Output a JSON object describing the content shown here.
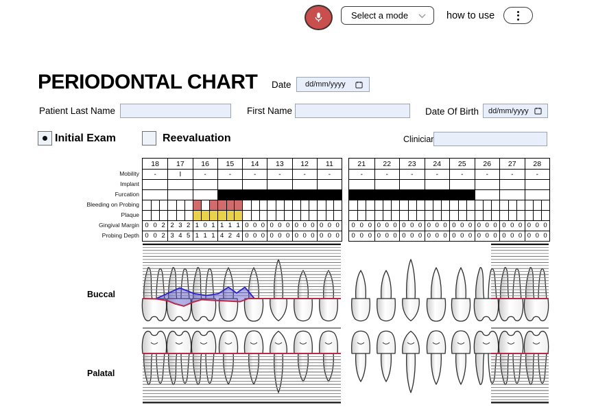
{
  "topbar": {
    "mode_select_value": "Select a mode",
    "help_text": "how to use"
  },
  "header": {
    "title": "PERIODONTAL CHART",
    "date_label": "Date",
    "date_value": "dd/mm/yyyy"
  },
  "patient": {
    "last_name_label": "Patient Last Name",
    "last_name_value": "",
    "first_name_label": "First Name",
    "first_name_value": "",
    "dob_label": "Date Of Birth",
    "dob_value": "dd/mm/yyyy"
  },
  "exam": {
    "initial_label": "Initial Exam",
    "initial_selected": true,
    "reevaluation_label": "Reevaluation",
    "reevaluation_selected": false,
    "clinician_label": "Clinician",
    "clinician_value": ""
  },
  "chart": {
    "row_labels": [
      "Mobility",
      "Implant",
      "Furcation",
      "Bleeding on Probing",
      "Plaque",
      "Gingival Margin",
      "Probing Depth"
    ],
    "left": {
      "teeth": [
        "18",
        "17",
        "16",
        "15",
        "14",
        "13",
        "12",
        "11"
      ],
      "mobility": [
        "-",
        "I",
        "-",
        "-",
        "-",
        "-",
        "-",
        "-"
      ],
      "implant": [
        "",
        "",
        "",
        "",
        "",
        "",
        "",
        ""
      ],
      "furcation": [
        0,
        0,
        0,
        1,
        1,
        1,
        1,
        1
      ],
      "bleeding": [
        [
          0,
          0,
          0
        ],
        [
          0,
          0,
          0
        ],
        [
          1,
          0,
          1
        ],
        [
          1,
          1,
          1
        ],
        [
          0,
          0,
          0
        ],
        [
          0,
          0,
          0
        ],
        [
          0,
          0,
          0
        ],
        [
          0,
          0,
          0
        ]
      ],
      "plaque": [
        [
          0,
          0,
          0
        ],
        [
          0,
          0,
          0
        ],
        [
          1,
          1,
          1
        ],
        [
          1,
          1,
          1
        ],
        [
          0,
          0,
          0
        ],
        [
          0,
          0,
          0
        ],
        [
          0,
          0,
          0
        ],
        [
          0,
          0,
          0
        ]
      ],
      "gingival_margin": [
        [
          "0",
          "0",
          "2"
        ],
        [
          "2",
          "3",
          "2"
        ],
        [
          "1",
          "0",
          "1"
        ],
        [
          "1",
          "1",
          "1"
        ],
        [
          "0",
          "0",
          "0"
        ],
        [
          "0",
          "0",
          "0"
        ],
        [
          "0",
          "0",
          "0"
        ],
        [
          "0",
          "0",
          "0"
        ]
      ],
      "probing_depth": [
        [
          "0",
          "0",
          "2"
        ],
        [
          "3",
          "4",
          "5"
        ],
        [
          "1",
          "1",
          "1"
        ],
        [
          "4",
          "2",
          "4"
        ],
        [
          "0",
          "0",
          "0"
        ],
        [
          "0",
          "0",
          "0"
        ],
        [
          "0",
          "0",
          "0"
        ],
        [
          "0",
          "0",
          "0"
        ]
      ]
    },
    "right": {
      "teeth": [
        "21",
        "22",
        "23",
        "24",
        "25",
        "26",
        "27",
        "28"
      ],
      "mobility": [
        "-",
        "-",
        "-",
        "-",
        "-",
        "-",
        "-",
        "-"
      ],
      "implant": [
        "",
        "",
        "",
        "",
        "",
        "",
        "",
        ""
      ],
      "furcation": [
        1,
        1,
        1,
        1,
        1,
        0,
        0,
        0
      ],
      "bleeding": [
        [
          0,
          0,
          0
        ],
        [
          0,
          0,
          0
        ],
        [
          0,
          0,
          0
        ],
        [
          0,
          0,
          0
        ],
        [
          0,
          0,
          0
        ],
        [
          0,
          0,
          0
        ],
        [
          0,
          0,
          0
        ],
        [
          0,
          0,
          0
        ]
      ],
      "plaque": [
        [
          0,
          0,
          0
        ],
        [
          0,
          0,
          0
        ],
        [
          0,
          0,
          0
        ],
        [
          0,
          0,
          0
        ],
        [
          0,
          0,
          0
        ],
        [
          0,
          0,
          0
        ],
        [
          0,
          0,
          0
        ],
        [
          0,
          0,
          0
        ]
      ],
      "gingival_margin": [
        [
          "0",
          "0",
          "0"
        ],
        [
          "0",
          "0",
          "0"
        ],
        [
          "0",
          "0",
          "0"
        ],
        [
          "0",
          "0",
          "0"
        ],
        [
          "0",
          "0",
          "0"
        ],
        [
          "0",
          "0",
          "0"
        ],
        [
          "0",
          "0",
          "0"
        ],
        [
          "0",
          "0",
          "0"
        ]
      ],
      "probing_depth": [
        [
          "0",
          "0",
          "0"
        ],
        [
          "0",
          "0",
          "0"
        ],
        [
          "0",
          "0",
          "0"
        ],
        [
          "0",
          "0",
          "0"
        ],
        [
          "0",
          "0",
          "0"
        ],
        [
          "0",
          "0",
          "0"
        ],
        [
          "0",
          "0",
          "0"
        ],
        [
          "0",
          "0",
          "0"
        ]
      ]
    },
    "views": {
      "buccal": "Buccal",
      "palatal": "Palatal"
    },
    "colors": {
      "bleeding": "#d06c6c",
      "plaque": "#e8d24b",
      "furcation": "#000000",
      "gingival_line": "#b62a48",
      "probing_line": "#2b22cc",
      "probing_fill": "rgba(90,85,205,0.45)",
      "mic_red": "#c94f4f"
    }
  }
}
